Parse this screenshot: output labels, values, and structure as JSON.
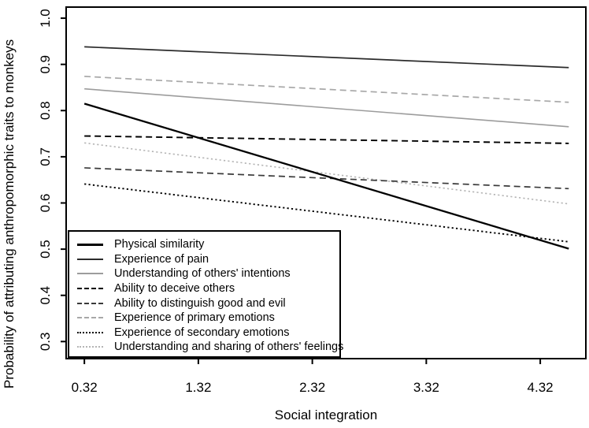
{
  "figure": {
    "background": "#ffffff",
    "axis_color": "#000000"
  },
  "chart_data": {
    "type": "line",
    "title": "",
    "xlabel": "Social integration",
    "ylabel": "Probability of attributing anthropomorphic traits to monkeys",
    "xlim": [
      0.16,
      4.72
    ],
    "ylim": [
      0.263,
      1.024
    ],
    "grid": false,
    "legend_position": "bottom-left",
    "x_ticks": [
      0.32,
      1.32,
      2.32,
      3.32,
      4.32
    ],
    "x_tick_labels": [
      "0.32",
      "1.32",
      "2.32",
      "3.32",
      "4.32"
    ],
    "y_ticks": [
      0.3,
      0.4,
      0.5,
      0.6,
      0.7,
      0.8,
      0.9,
      1.0
    ],
    "y_tick_labels": [
      "0.3",
      "0.4",
      "0.5",
      "0.6",
      "0.7",
      "0.8",
      "0.9",
      "1.0"
    ],
    "x": [
      0.32,
      4.57
    ],
    "series": [
      {
        "name": "Physical similarity",
        "color": "#000000",
        "line_style": "solid",
        "line_width": 2.3,
        "values": [
          0.815,
          0.501
        ]
      },
      {
        "name": "Experience of pain",
        "color": "#2b2b2b",
        "line_style": "solid",
        "line_width": 1.7,
        "values": [
          0.938,
          0.893
        ]
      },
      {
        "name": "Understanding of others' intentions",
        "color": "#9c9c9c",
        "line_style": "solid",
        "line_width": 1.6,
        "values": [
          0.847,
          0.765
        ]
      },
      {
        "name": "Ability to deceive others",
        "color": "#000000",
        "line_style": "dashed",
        "line_width": 1.9,
        "values": [
          0.745,
          0.729
        ]
      },
      {
        "name": "Ability to distinguish good and evil",
        "color": "#3a3a3a",
        "line_style": "dashed",
        "line_width": 1.7,
        "values": [
          0.676,
          0.631
        ]
      },
      {
        "name": "Experience of primary emotions",
        "color": "#a8a8a8",
        "line_style": "dashed",
        "line_width": 1.7,
        "values": [
          0.874,
          0.818
        ]
      },
      {
        "name": "Experience of secondary emotions",
        "color": "#000000",
        "line_style": "dotted",
        "line_width": 1.9,
        "values": [
          0.641,
          0.516
        ]
      },
      {
        "name": "Understanding and sharing of others' feelings",
        "color": "#b4b4b4",
        "line_style": "dotted",
        "line_width": 1.6,
        "values": [
          0.73,
          0.598
        ]
      }
    ]
  }
}
